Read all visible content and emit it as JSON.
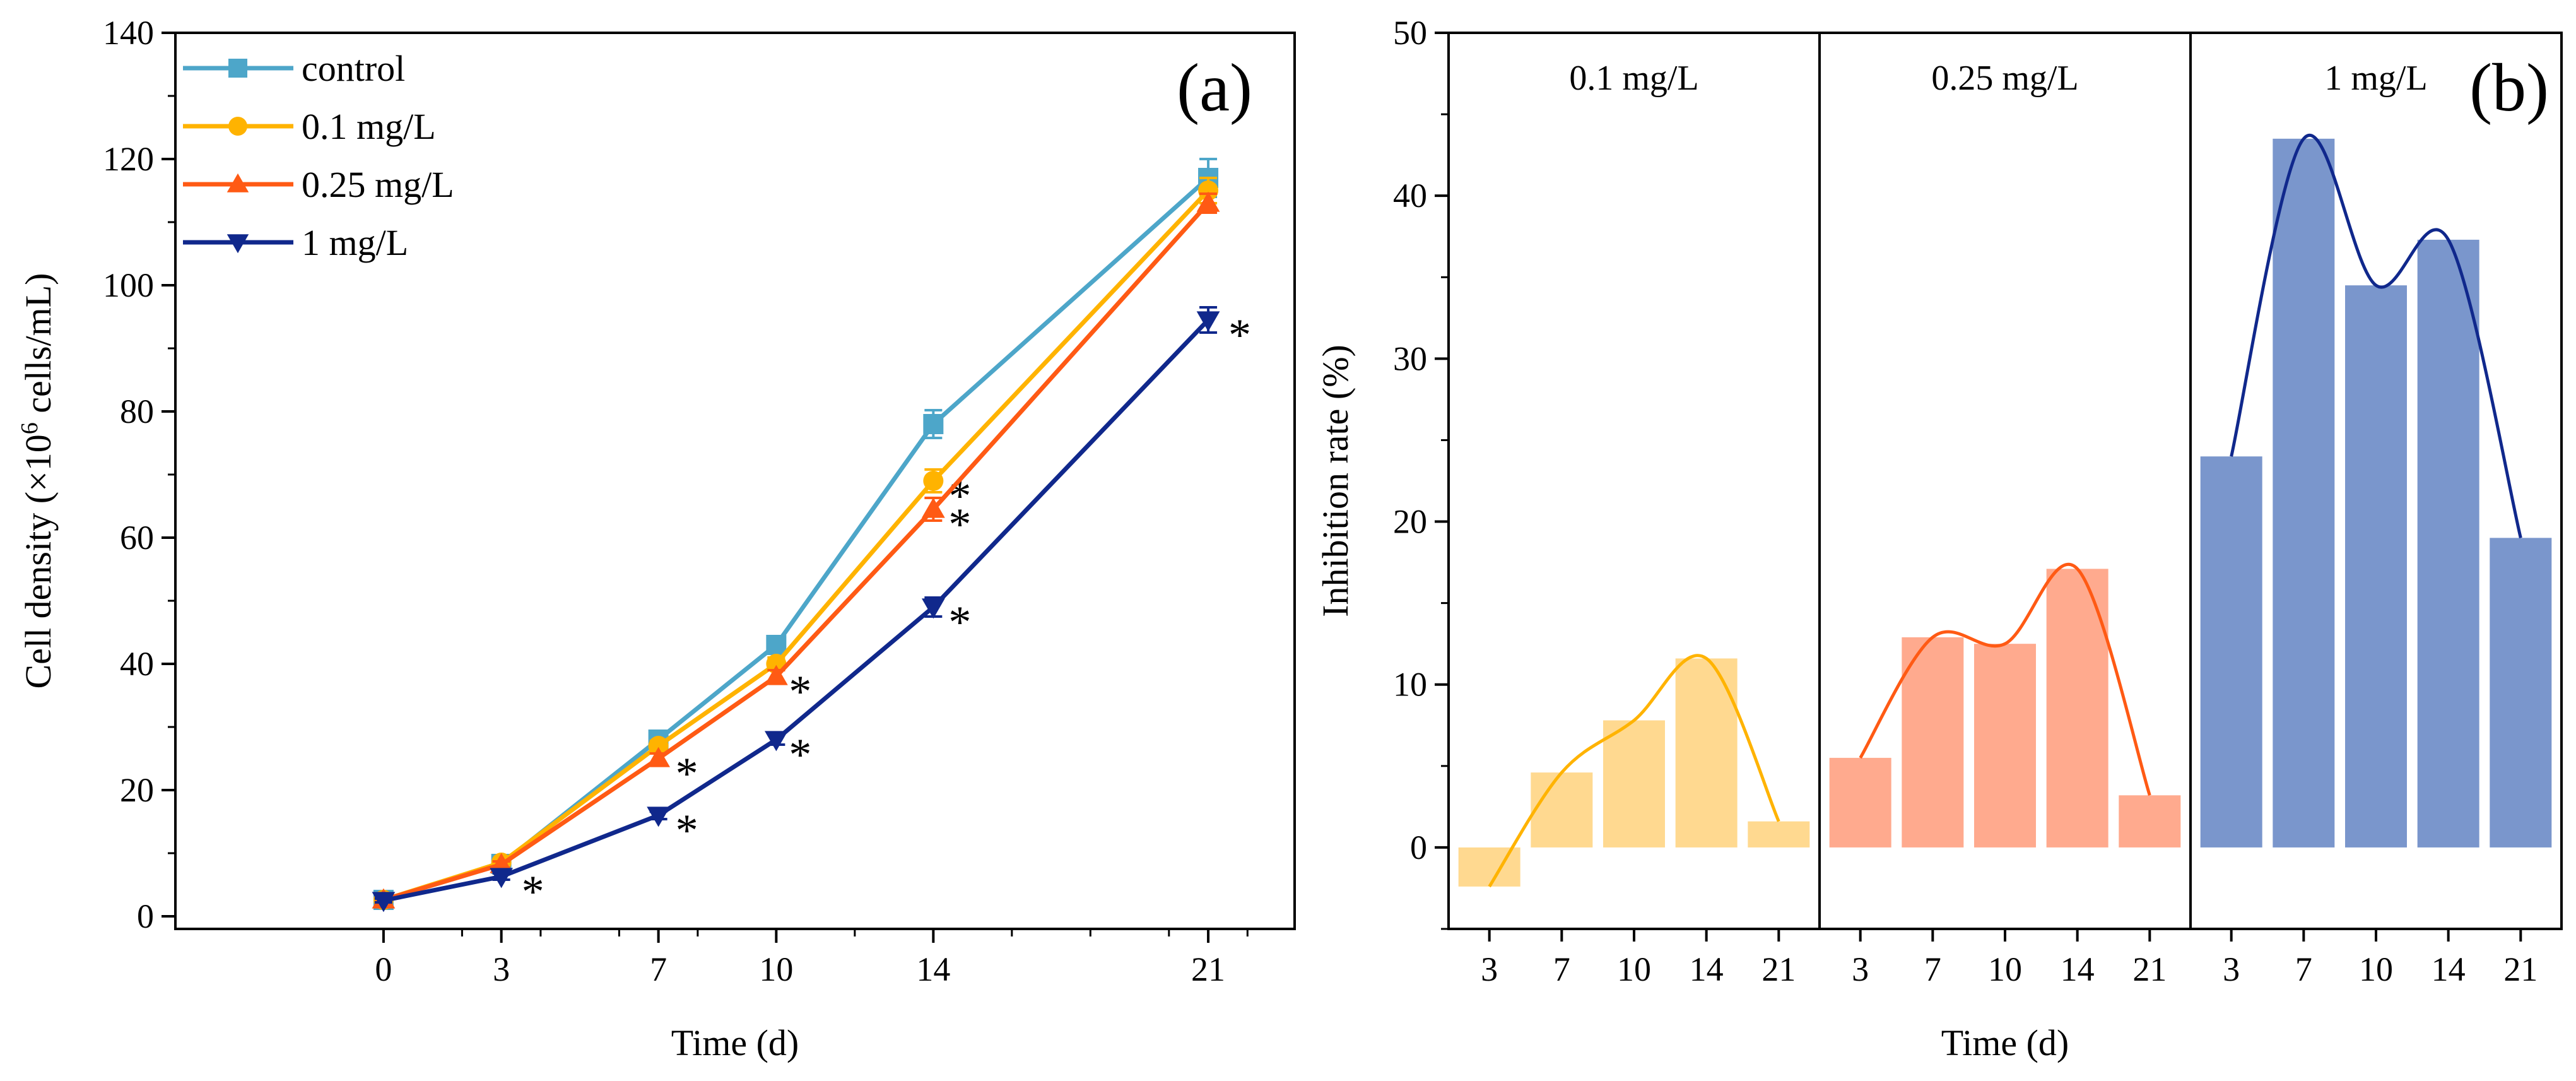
{
  "chart_data": [
    {
      "type": "line",
      "panel_label": "(a)",
      "xlabel": "Time (d)",
      "ylabel_parts": [
        "Cell density (×10",
        "6",
        " cells/mL)"
      ],
      "x": [
        0,
        3,
        7,
        10,
        14,
        21
      ],
      "x_ticks": [
        0,
        3,
        7,
        10,
        14,
        21
      ],
      "xlim": [
        -5.3,
        23.2
      ],
      "ylim": [
        -2,
        140
      ],
      "y_ticks": [
        0,
        20,
        40,
        60,
        80,
        100,
        120,
        140
      ],
      "legend_position": "top-left",
      "asterisk": "*",
      "series": [
        {
          "name": "control",
          "color": "#4DA6C9",
          "marker": "square",
          "values": [
            2.6,
            8.3,
            28,
            43,
            78,
            117
          ],
          "errors": [
            0.3,
            0.5,
            0.8,
            1.0,
            2.2,
            3.0
          ],
          "significant": [
            false,
            false,
            false,
            false,
            false,
            false
          ]
        },
        {
          "name": "0.1 mg/L",
          "color": "#FFB300",
          "marker": "circle",
          "values": [
            2.6,
            8.5,
            27,
            40,
            69,
            115
          ],
          "errors": [
            0.3,
            0.5,
            0.8,
            1.0,
            1.8,
            2.0
          ],
          "significant": [
            false,
            false,
            false,
            false,
            true,
            false
          ]
        },
        {
          "name": "0.25 mg/L",
          "color": "#FF5A14",
          "marker": "triangle",
          "values": [
            2.6,
            8.2,
            25,
            38,
            64.5,
            113
          ],
          "errors": [
            0.3,
            0.5,
            0.8,
            1.0,
            1.8,
            1.5
          ],
          "significant": [
            false,
            false,
            true,
            true,
            true,
            false
          ]
        },
        {
          "name": "1 mg/L",
          "color": "#10288C",
          "marker": "triangle-down",
          "values": [
            2.5,
            6.3,
            16,
            28,
            49,
            94.5
          ],
          "errors": [
            0.3,
            0.5,
            0.6,
            0.8,
            1.5,
            2.0
          ],
          "significant": [
            false,
            true,
            true,
            true,
            true,
            true
          ]
        }
      ]
    },
    {
      "type": "bar",
      "panel_label": "(b)",
      "xlabel": "Time (d)",
      "ylabel": "Inhibition rate (%)",
      "ylim": [
        -5,
        50
      ],
      "y_ticks": [
        0,
        10,
        20,
        30,
        40,
        50
      ],
      "panels": [
        {
          "name": "0.1 mg/L",
          "bar_color": "#FFD990",
          "line_color": "#FFB300",
          "tick_color": "#FFB300",
          "categories": [
            "3",
            "7",
            "10",
            "14",
            "21"
          ],
          "values": [
            -2.4,
            4.6,
            7.8,
            11.6,
            1.6
          ]
        },
        {
          "name": "0.25 mg/L",
          "bar_color": "#FFAA8E",
          "line_color": "#FF5A14",
          "tick_color": "#FF5A14",
          "categories": [
            "3",
            "7",
            "10",
            "14",
            "21"
          ],
          "values": [
            5.5,
            12.9,
            12.5,
            17.1,
            3.2
          ]
        },
        {
          "name": "1 mg/L",
          "bar_color": "#7A96CC",
          "line_color": "#10288C",
          "tick_color": "#10288C",
          "categories": [
            "3",
            "7",
            "10",
            "14",
            "21"
          ],
          "values": [
            24,
            43.5,
            34.5,
            37.3,
            19
          ]
        }
      ]
    }
  ]
}
